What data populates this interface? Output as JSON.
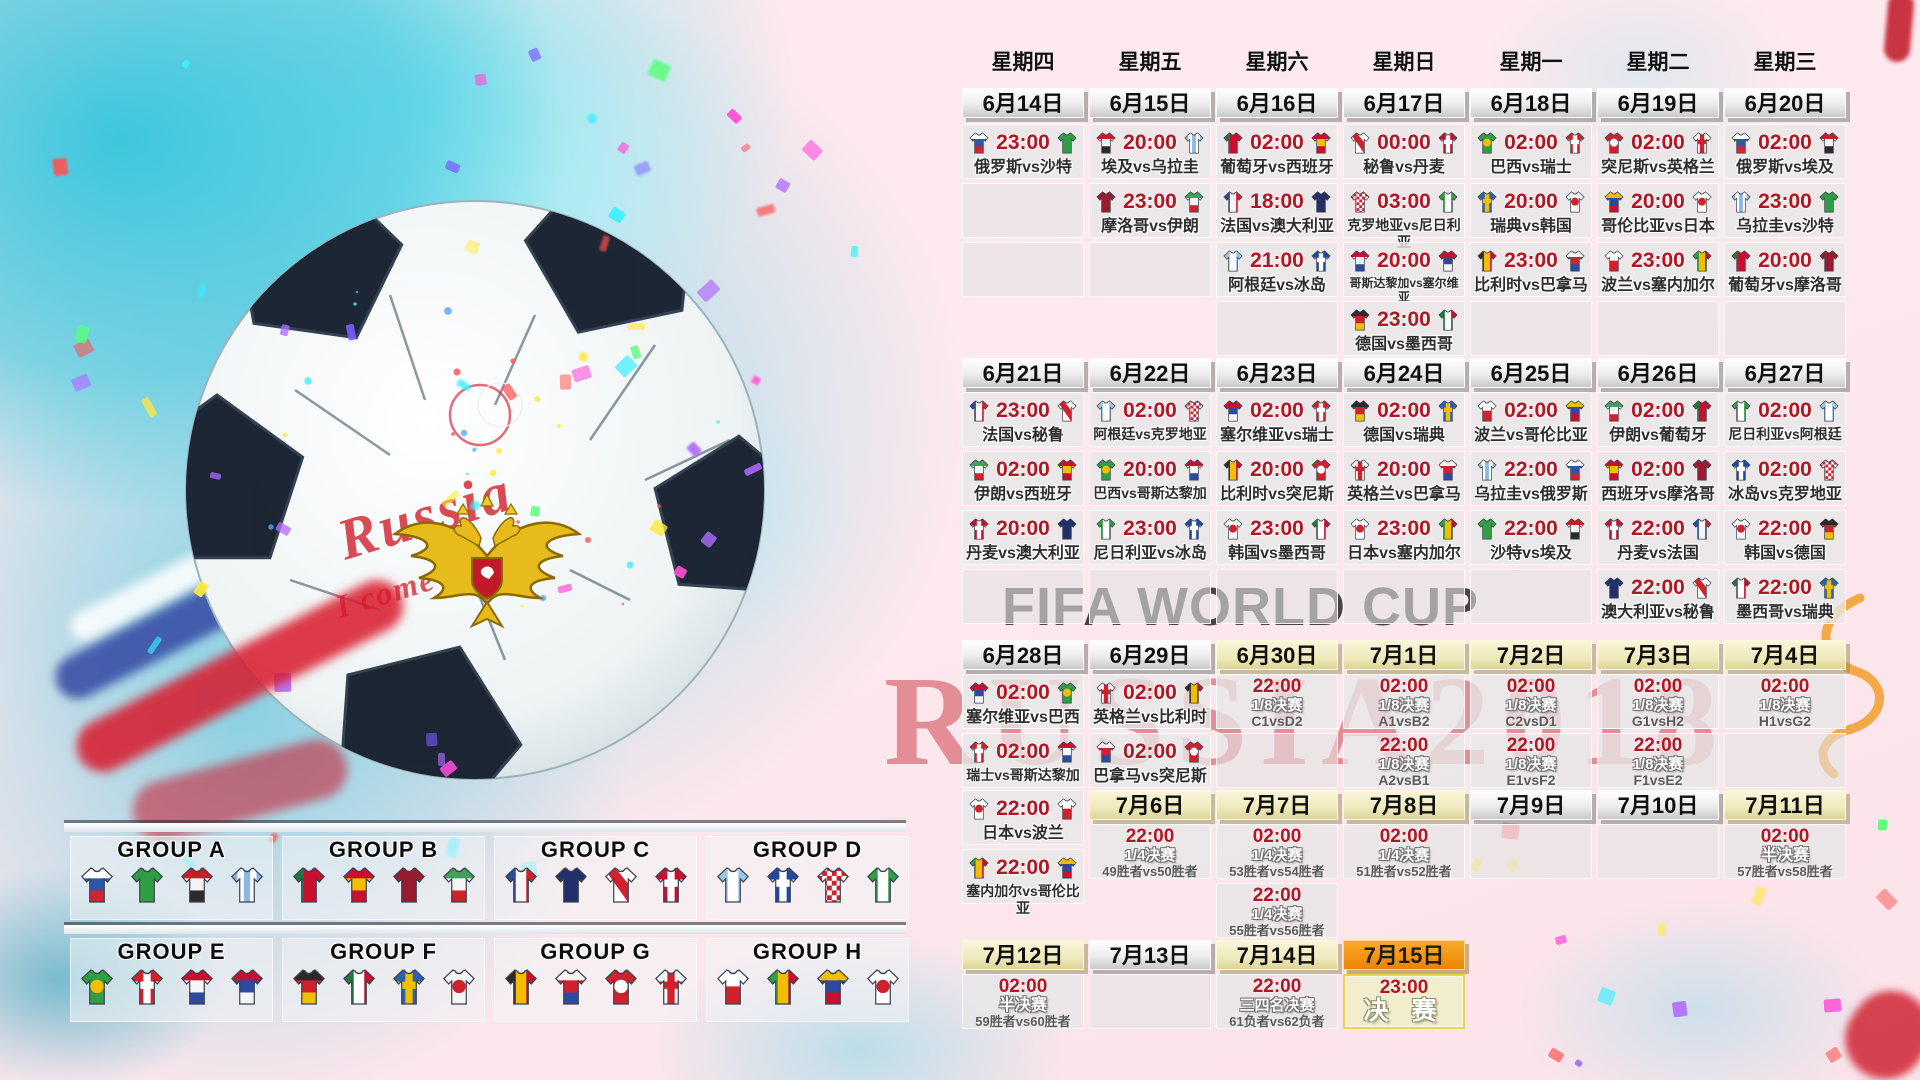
{
  "watermark": {
    "line1": "FIFA WORLD CUP",
    "line2": "RUSSIA2018"
  },
  "ball": {
    "script_line1": "Russia",
    "script_line2": "I come '18"
  },
  "weekdays": [
    "星期四",
    "星期五",
    "星期六",
    "星期日",
    "星期一",
    "星期二",
    "星期三"
  ],
  "labels": {
    "round16": "1/8决赛",
    "quarter": "1/4决赛",
    "semi": "半决赛",
    "third": "三四名决赛",
    "final": "决 赛"
  },
  "colors": {
    "time_red": "#b01623",
    "header_khaki": "#efe9bd",
    "header_orange": "#f39310",
    "watermark_red": "#c41c28"
  },
  "weeks": [
    {
      "columns": [
        {
          "date": "6月14日",
          "phase": "group",
          "cells": [
            {
              "t": "23:00",
              "m": "俄罗斯vs沙特"
            },
            "E",
            "E",
            null
          ]
        },
        {
          "date": "6月15日",
          "phase": "group",
          "cells": [
            {
              "t": "20:00",
              "m": "埃及vs乌拉圭"
            },
            {
              "t": "23:00",
              "m": "摩洛哥vs伊朗"
            },
            "E",
            null
          ]
        },
        {
          "date": "6月16日",
          "phase": "group",
          "cells": [
            {
              "t": "02:00",
              "m": "葡萄牙vs西班牙"
            },
            {
              "t": "18:00",
              "m": "法国vs澳大利亚"
            },
            {
              "t": "21:00",
              "m": "阿根廷vs冰岛"
            },
            "E"
          ]
        },
        {
          "date": "6月17日",
          "phase": "group",
          "cells": [
            {
              "t": "00:00",
              "m": "秘鲁vs丹麦"
            },
            {
              "t": "03:00",
              "m": "克罗地亚vs尼日利亚"
            },
            {
              "t": "20:00",
              "m": "哥斯达黎加vs塞尔维亚"
            },
            {
              "t": "23:00",
              "m": "德国vs墨西哥"
            }
          ]
        },
        {
          "date": "6月18日",
          "phase": "group",
          "cells": [
            {
              "t": "02:00",
              "m": "巴西vs瑞士"
            },
            {
              "t": "20:00",
              "m": "瑞典vs韩国"
            },
            {
              "t": "23:00",
              "m": "比利时vs巴拿马"
            },
            "E"
          ]
        },
        {
          "date": "6月19日",
          "phase": "group",
          "cells": [
            {
              "t": "02:00",
              "m": "突尼斯vs英格兰"
            },
            {
              "t": "20:00",
              "m": "哥伦比亚vs日本"
            },
            {
              "t": "23:00",
              "m": "波兰vs塞内加尔"
            },
            "E"
          ]
        },
        {
          "date": "6月20日",
          "phase": "group",
          "cells": [
            {
              "t": "02:00",
              "m": "俄罗斯vs埃及"
            },
            {
              "t": "23:00",
              "m": "乌拉圭vs沙特"
            },
            {
              "t": "20:00",
              "m": "葡萄牙vs摩洛哥"
            },
            "E"
          ]
        }
      ]
    },
    {
      "columns": [
        {
          "date": "6月21日",
          "phase": "group",
          "cells": [
            {
              "t": "23:00",
              "m": "法国vs秘鲁"
            },
            {
              "t": "02:00",
              "m": "伊朗vs西班牙"
            },
            {
              "t": "20:00",
              "m": "丹麦vs澳大利亚"
            },
            "E"
          ]
        },
        {
          "date": "6月22日",
          "phase": "group",
          "cells": [
            {
              "t": "02:00",
              "m": "阿根廷vs克罗地亚"
            },
            {
              "t": "20:00",
              "m": "巴西vs哥斯达黎加"
            },
            {
              "t": "23:00",
              "m": "尼日利亚vs冰岛"
            },
            "E"
          ]
        },
        {
          "date": "6月23日",
          "phase": "group",
          "cells": [
            {
              "t": "02:00",
              "m": "塞尔维亚vs瑞士"
            },
            {
              "t": "20:00",
              "m": "比利时vs突尼斯"
            },
            {
              "t": "23:00",
              "m": "韩国vs墨西哥"
            },
            "E"
          ]
        },
        {
          "date": "6月24日",
          "phase": "group",
          "cells": [
            {
              "t": "02:00",
              "m": "德国vs瑞典"
            },
            {
              "t": "20:00",
              "m": "英格兰vs巴拿马"
            },
            {
              "t": "23:00",
              "m": "日本vs塞内加尔"
            },
            "E"
          ]
        },
        {
          "date": "6月25日",
          "phase": "group",
          "cells": [
            {
              "t": "02:00",
              "m": "波兰vs哥伦比亚"
            },
            {
              "t": "22:00",
              "m": "乌拉圭vs俄罗斯"
            },
            {
              "t": "22:00",
              "m": "沙特vs埃及"
            },
            "E"
          ]
        },
        {
          "date": "6月26日",
          "phase": "group",
          "cells": [
            {
              "t": "02:00",
              "m": "伊朗vs葡萄牙"
            },
            {
              "t": "02:00",
              "m": "西班牙vs摩洛哥"
            },
            {
              "t": "22:00",
              "m": "丹麦vs法国"
            },
            {
              "t": "22:00",
              "m": "澳大利亚vs秘鲁"
            }
          ]
        },
        {
          "date": "6月27日",
          "phase": "group",
          "cells": [
            {
              "t": "02:00",
              "m": "尼日利亚vs阿根廷"
            },
            {
              "t": "02:00",
              "m": "冰岛vs克罗地亚"
            },
            {
              "t": "22:00",
              "m": "韩国vs德国"
            },
            {
              "t": "22:00",
              "m": "墨西哥vs瑞典"
            }
          ]
        }
      ]
    },
    {
      "columns": [
        {
          "date": "6月28日",
          "phase": "group",
          "cells": [
            {
              "t": "02:00",
              "m": "塞尔维亚vs巴西"
            },
            {
              "t": "02:00",
              "m": "瑞士vs哥斯达黎加"
            }
          ]
        },
        {
          "date": "6月29日",
          "phase": "group",
          "cells": [
            {
              "t": "02:00",
              "m": "英格兰vs比利时"
            },
            {
              "t": "02:00",
              "m": "巴拿马vs突尼斯"
            }
          ]
        },
        {
          "date": "6月30日",
          "phase": "knockout",
          "cells": [
            {
              "t": "22:00",
              "s": "1/8决赛",
              "d": "C1vsD2"
            },
            "E"
          ]
        },
        {
          "date": "7月1日",
          "phase": "knockout",
          "cells": [
            {
              "t": "02:00",
              "s": "1/8决赛",
              "d": "A1vsB2"
            },
            {
              "t": "22:00",
              "s": "1/8决赛",
              "d": "A2vsB1"
            }
          ]
        },
        {
          "date": "7月2日",
          "phase": "knockout",
          "cells": [
            {
              "t": "02:00",
              "s": "1/8决赛",
              "d": "C2vsD1"
            },
            {
              "t": "22:00",
              "s": "1/8决赛",
              "d": "E1vsF2"
            }
          ]
        },
        {
          "date": "7月3日",
          "phase": "knockout",
          "cells": [
            {
              "t": "02:00",
              "s": "1/8决赛",
              "d": "G1vsH2"
            },
            {
              "t": "22:00",
              "s": "1/8决赛",
              "d": "F1vsE2"
            }
          ]
        },
        {
          "date": "7月4日",
          "phase": "knockout",
          "cells": [
            {
              "t": "02:00",
              "s": "1/8决赛",
              "d": "H1vsG2"
            },
            "E"
          ]
        }
      ]
    },
    {
      "columns": [
        {
          "date": null,
          "phase": "group",
          "cells": [
            {
              "t": "22:00",
              "m": "日本vs波兰"
            },
            {
              "t": "22:00",
              "m": "塞内加尔vs哥伦比亚"
            }
          ]
        },
        {
          "date": "7月6日",
          "phase": "knockout",
          "cells": [
            {
              "t": "22:00",
              "s": "1/4决赛",
              "d": "49胜者vs50胜者"
            },
            null
          ]
        },
        {
          "date": "7月7日",
          "phase": "knockout",
          "cells": [
            {
              "t": "02:00",
              "s": "1/4决赛",
              "d": "53胜者vs54胜者"
            },
            {
              "t": "22:00",
              "s": "1/4决赛",
              "d": "55胜者vs56胜者"
            }
          ]
        },
        {
          "date": "7月8日",
          "phase": "knockout",
          "cells": [
            {
              "t": "02:00",
              "s": "1/4决赛",
              "d": "51胜者vs52胜者"
            },
            null
          ]
        },
        {
          "date": "7月9日",
          "phase": "group",
          "cells": [
            "E",
            null
          ]
        },
        {
          "date": "7月10日",
          "phase": "group",
          "cells": [
            "E",
            null
          ]
        },
        {
          "date": "7月11日",
          "phase": "knockout",
          "cells": [
            {
              "t": "02:00",
              "s": "半决赛",
              "d": "57胜者vs58胜者"
            },
            null
          ]
        }
      ]
    },
    {
      "columns": [
        {
          "date": "7月12日",
          "phase": "knockout",
          "cells": [
            {
              "t": "02:00",
              "s": "半决赛",
              "d": "59胜者vs60胜者"
            }
          ]
        },
        {
          "date": "7月13日",
          "phase": "group",
          "cells": [
            "E"
          ]
        },
        {
          "date": "7月14日",
          "phase": "knockout",
          "cells": [
            {
              "t": "22:00",
              "s": "三四名决赛",
              "d": "61负者vs62负者"
            }
          ]
        },
        {
          "date": "7月15日",
          "phase": "final",
          "cells": [
            {
              "t": "23:00",
              "final": "决 赛"
            }
          ]
        }
      ]
    }
  ],
  "groups": [
    {
      "name": "GROUP A",
      "teams": [
        "俄罗斯",
        "沙特",
        "埃及",
        "乌拉圭"
      ]
    },
    {
      "name": "GROUP B",
      "teams": [
        "葡萄牙",
        "西班牙",
        "摩洛哥",
        "伊朗"
      ]
    },
    {
      "name": "GROUP C",
      "teams": [
        "法国",
        "澳大利亚",
        "秘鲁",
        "丹麦"
      ]
    },
    {
      "name": "GROUP D",
      "teams": [
        "阿根廷",
        "冰岛",
        "克罗地亚",
        "尼日利亚"
      ]
    },
    {
      "name": "GROUP E",
      "teams": [
        "巴西",
        "瑞士",
        "哥斯达黎加",
        "塞尔维亚"
      ]
    },
    {
      "name": "GROUP F",
      "teams": [
        "德国",
        "墨西哥",
        "瑞典",
        "韩国"
      ]
    },
    {
      "name": "GROUP G",
      "teams": [
        "比利时",
        "巴拿马",
        "突尼斯",
        "英格兰"
      ]
    },
    {
      "name": "GROUP H",
      "teams": [
        "波兰",
        "塞内加尔",
        "哥伦比亚",
        "日本"
      ]
    }
  ],
  "teams": {
    "俄罗斯": {
      "kind": "h",
      "colors": [
        "#ffffff",
        "#2b57a8",
        "#cf2433"
      ]
    },
    "沙特": {
      "kind": "plain",
      "colors": [
        "#2f9e44"
      ]
    },
    "埃及": {
      "kind": "h",
      "colors": [
        "#ce1c26",
        "#f3f3f3",
        "#2a2a2a"
      ]
    },
    "乌拉圭": {
      "kind": "v",
      "colors": [
        "#8ab8e0",
        "#ffffff",
        "#8ab8e0",
        "#ffffff",
        "#8ab8e0"
      ]
    },
    "摩洛哥": {
      "kind": "plain",
      "colors": [
        "#9a1b2f"
      ]
    },
    "伊朗": {
      "kind": "h",
      "colors": [
        "#43a05a",
        "#f5f5f5",
        "#d0212c"
      ]
    },
    "葡萄牙": {
      "kind": "v",
      "colors": [
        "#1f7a40",
        "#c8102e",
        "#c8102e"
      ]
    },
    "西班牙": {
      "kind": "h",
      "colors": [
        "#c8102e",
        "#f1bf00",
        "#c8102e"
      ]
    },
    "法国": {
      "kind": "v",
      "colors": [
        "#2c4ba0",
        "#f5f5f5",
        "#d0212c"
      ]
    },
    "澳大利亚": {
      "kind": "plain",
      "colors": [
        "#232f6b"
      ]
    },
    "阿根廷": {
      "kind": "v",
      "colors": [
        "#9cc7ea",
        "#ffffff",
        "#9cc7ea"
      ]
    },
    "冰岛": {
      "kind": "cross",
      "colors": [
        "#2049a0",
        "#ffffff"
      ]
    },
    "秘鲁": {
      "kind": "sash",
      "colors": [
        "#ffffff",
        "#d0212c"
      ]
    },
    "丹麦": {
      "kind": "cross",
      "colors": [
        "#c8102e",
        "#ffffff"
      ]
    },
    "克罗地亚": {
      "kind": "check",
      "colors": [
        "#d0212c",
        "#ffffff"
      ]
    },
    "尼日利亚": {
      "kind": "v",
      "colors": [
        "#2f9e44",
        "#ffffff",
        "#2f9e44"
      ]
    },
    "哥斯达黎加": {
      "kind": "h",
      "colors": [
        "#c8102e",
        "#f5f5f5",
        "#2c4ba0"
      ]
    },
    "塞尔维亚": {
      "kind": "h",
      "colors": [
        "#c8102e",
        "#2c4ba0",
        "#f5f5f5"
      ]
    },
    "德国": {
      "kind": "h",
      "colors": [
        "#2a2a2a",
        "#d0212c",
        "#f1bf00"
      ]
    },
    "墨西哥": {
      "kind": "v",
      "colors": [
        "#1f7a40",
        "#ffffff",
        "#c8102e"
      ]
    },
    "巴西": {
      "kind": "circle",
      "colors": [
        "#2f9e44",
        "#f1bf00"
      ]
    },
    "瑞士": {
      "kind": "cross",
      "colors": [
        "#d0212c",
        "#ffffff"
      ]
    },
    "瑞典": {
      "kind": "cross",
      "colors": [
        "#2c63b0",
        "#f1bf00"
      ]
    },
    "韩国": {
      "kind": "circle",
      "colors": [
        "#f5f5f5",
        "#d0212c"
      ]
    },
    "比利时": {
      "kind": "v",
      "colors": [
        "#2a2a2a",
        "#f1bf00",
        "#c8102e"
      ]
    },
    "巴拿马": {
      "kind": "h",
      "colors": [
        "#f5f5f5",
        "#d0212c",
        "#2c4ba0"
      ]
    },
    "突尼斯": {
      "kind": "circle",
      "colors": [
        "#d0212c",
        "#ffffff"
      ]
    },
    "英格兰": {
      "kind": "cross",
      "colors": [
        "#f7f7f7",
        "#d0212c"
      ]
    },
    "哥伦比亚": {
      "kind": "h",
      "colors": [
        "#f1bf00",
        "#2c4ba0",
        "#c8102e"
      ]
    },
    "日本": {
      "kind": "circle",
      "colors": [
        "#ffffff",
        "#d0212c"
      ]
    },
    "波兰": {
      "kind": "h",
      "colors": [
        "#ffffff",
        "#d0212c"
      ]
    },
    "塞内加尔": {
      "kind": "v",
      "colors": [
        "#2f9e44",
        "#f1bf00",
        "#c8102e"
      ]
    }
  }
}
